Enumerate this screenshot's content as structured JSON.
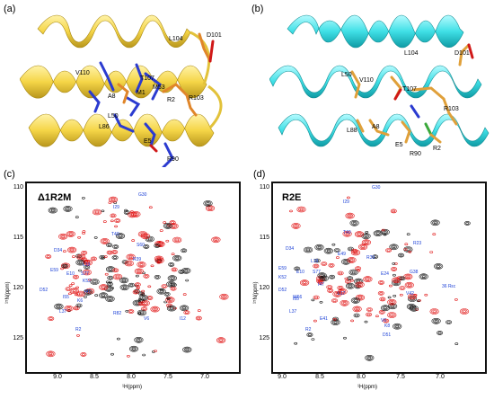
{
  "panels": {
    "a": {
      "label": "(a)",
      "residues": {
        "L104": "L104",
        "D101": "D101",
        "V110": "V110",
        "T107": "T107",
        "M53": "M53",
        "M1": "M1",
        "A8": "A8",
        "R2": "R2",
        "R103": "R103",
        "L50": "L50",
        "L86": "L86",
        "E5": "E5",
        "R90": "R90"
      }
    },
    "b": {
      "label": "(b)",
      "residues": {
        "L104": "L104",
        "D101": "D101",
        "L50": "L50",
        "V110": "V110",
        "T107": "T107",
        "R103": "R103",
        "L88": "L88",
        "A8": "A8",
        "E5": "E5",
        "R90": "R90",
        "R2": "R2"
      }
    },
    "c": {
      "label": "(c)",
      "title": "Δ1R2M",
      "xlabel": "¹H(ppm)",
      "ylabel": "¹⁵N(ppm)",
      "peaks": [
        "G30",
        "I29",
        "T40",
        "S60",
        "D34",
        "R39",
        "L19",
        "E59",
        "E10",
        "S77",
        "K52",
        "D52",
        "I55",
        "L37",
        "K6",
        "I47",
        "R82",
        "V6",
        "R2",
        "I12"
      ]
    },
    "d": {
      "label": "(d)",
      "title": "R2E",
      "xlabel": "¹H(ppm)",
      "ylabel": "¹⁵N(ppm)",
      "peaks": [
        "G30",
        "I29",
        "T40",
        "D34",
        "E49",
        "R39",
        "L19",
        "R23",
        "E59",
        "E10",
        "S77",
        "E24",
        "G38",
        "K52",
        "I47",
        "V42",
        "D52",
        "I55",
        "L17",
        "36 Rεc",
        "L37",
        "E41",
        "R2",
        "V6",
        "K8",
        "D51",
        "W66"
      ]
    }
  },
  "axes": {
    "yticks": [
      "110",
      "115",
      "120",
      "125"
    ],
    "xticks": [
      "9.0",
      "8.5",
      "8.0",
      "7.5",
      "7.0"
    ]
  },
  "colors": {
    "helix_a": "#f5d547",
    "helix_b": "#3fe0e6",
    "stick_blue": "#2b3bd0",
    "stick_orange": "#e0862a",
    "stick_red": "#d01818",
    "peak_black": "#111111",
    "peak_red": "#e01010"
  }
}
